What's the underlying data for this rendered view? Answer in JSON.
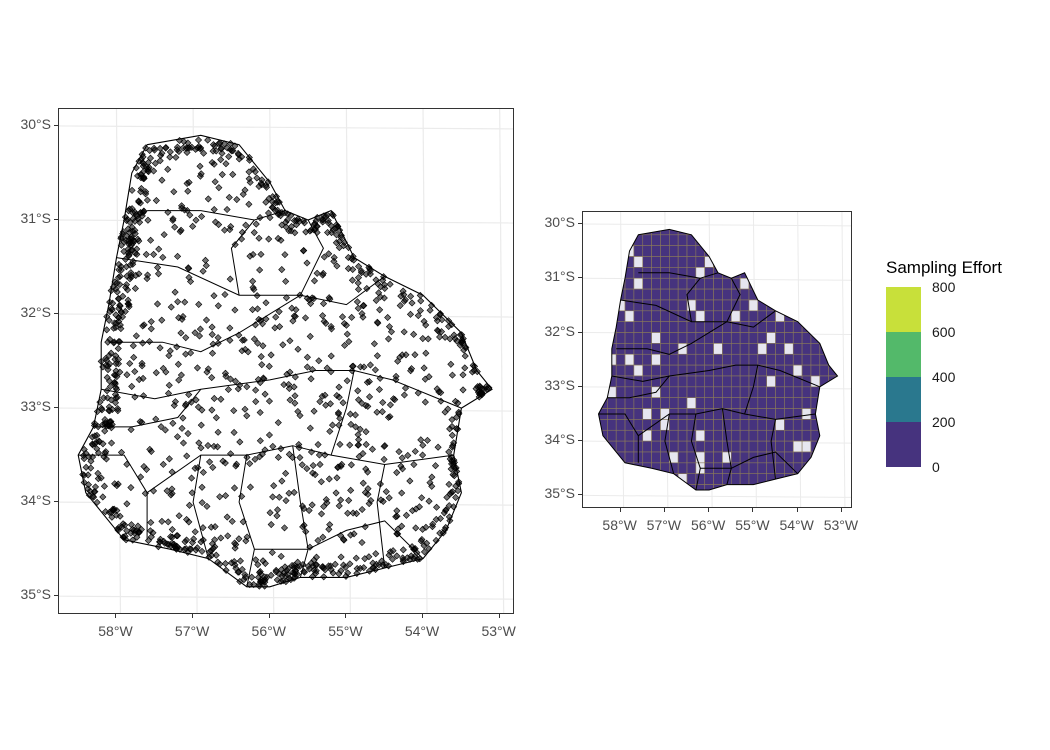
{
  "left_map": {
    "lat_ticks": [
      "30°S",
      "31°S",
      "32°S",
      "33°S",
      "34°S",
      "35°S"
    ],
    "lon_ticks": [
      "58°W",
      "57°W",
      "56°W",
      "55°W",
      "54°W",
      "53°W"
    ],
    "layer": "occurrence points"
  },
  "right_map": {
    "lat_ticks": [
      "30°S",
      "31°S",
      "32°S",
      "33°S",
      "34°S",
      "35°S"
    ],
    "lon_ticks": [
      "58°W",
      "57°W",
      "56°W",
      "55°W",
      "54°W",
      "53°W"
    ],
    "layer": "sampling effort grid"
  },
  "legend": {
    "title": "Sampling Effort",
    "labels": [
      "800",
      "600",
      "400",
      "200",
      "0"
    ],
    "colors": [
      "#440154",
      "#472e6e",
      "#2a788e",
      "#53b96a",
      "#c8e03a"
    ]
  },
  "colors": {
    "grid_fill": "#46337e",
    "grid_line": "#8a7a5a",
    "empty_cell": "#e6e6f0",
    "points": "#000000",
    "panel_grid": "#ebebeb"
  }
}
